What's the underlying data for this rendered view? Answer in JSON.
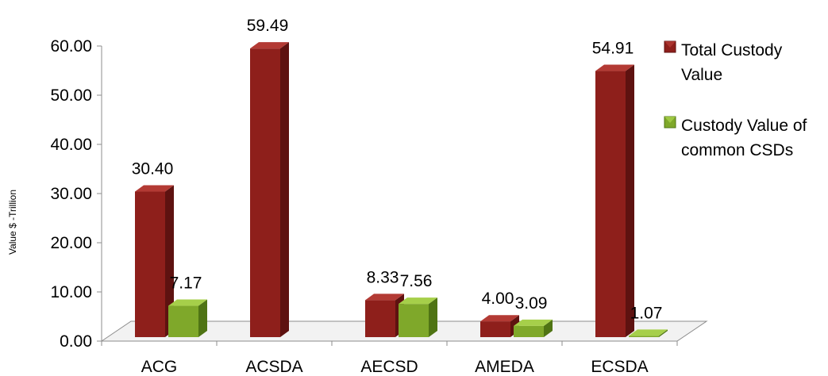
{
  "chart_data": {
    "type": "bar",
    "categories": [
      "ACG",
      "ACSDA",
      "AECSD",
      "AMEDA",
      "ECSDA"
    ],
    "series": [
      {
        "name": "Total Custody Value",
        "legend_lines": [
          "Total Custody",
          "Value"
        ],
        "values": [
          30.4,
          59.49,
          8.33,
          4.0,
          54.91
        ],
        "labels": [
          "30.40",
          "59.49",
          "8.33",
          "4.00",
          "54.91"
        ],
        "color_front": "#8e1f1b",
        "color_side": "#5e1210",
        "color_top": "#b33a34"
      },
      {
        "name": "Custody Value of common CSDs",
        "legend_lines": [
          "Custody Value of",
          "common CSDs"
        ],
        "values": [
          7.17,
          null,
          7.56,
          3.09,
          1.07
        ],
        "labels": [
          "7.17",
          "",
          "7.56",
          "3.09",
          "1.07"
        ],
        "color_front": "#7fa82a",
        "color_side": "#4f7414",
        "color_top": "#a6cf4a"
      }
    ],
    "ylabel": "Value $ -Trillion",
    "xlabel": "",
    "ylim": [
      0,
      60
    ],
    "yticks": [
      "0.00",
      "10.00",
      "20.00",
      "30.00",
      "40.00",
      "50.00",
      "60.00"
    ],
    "grid": false,
    "legend_position": "right",
    "style": "3d-clustered-column"
  }
}
